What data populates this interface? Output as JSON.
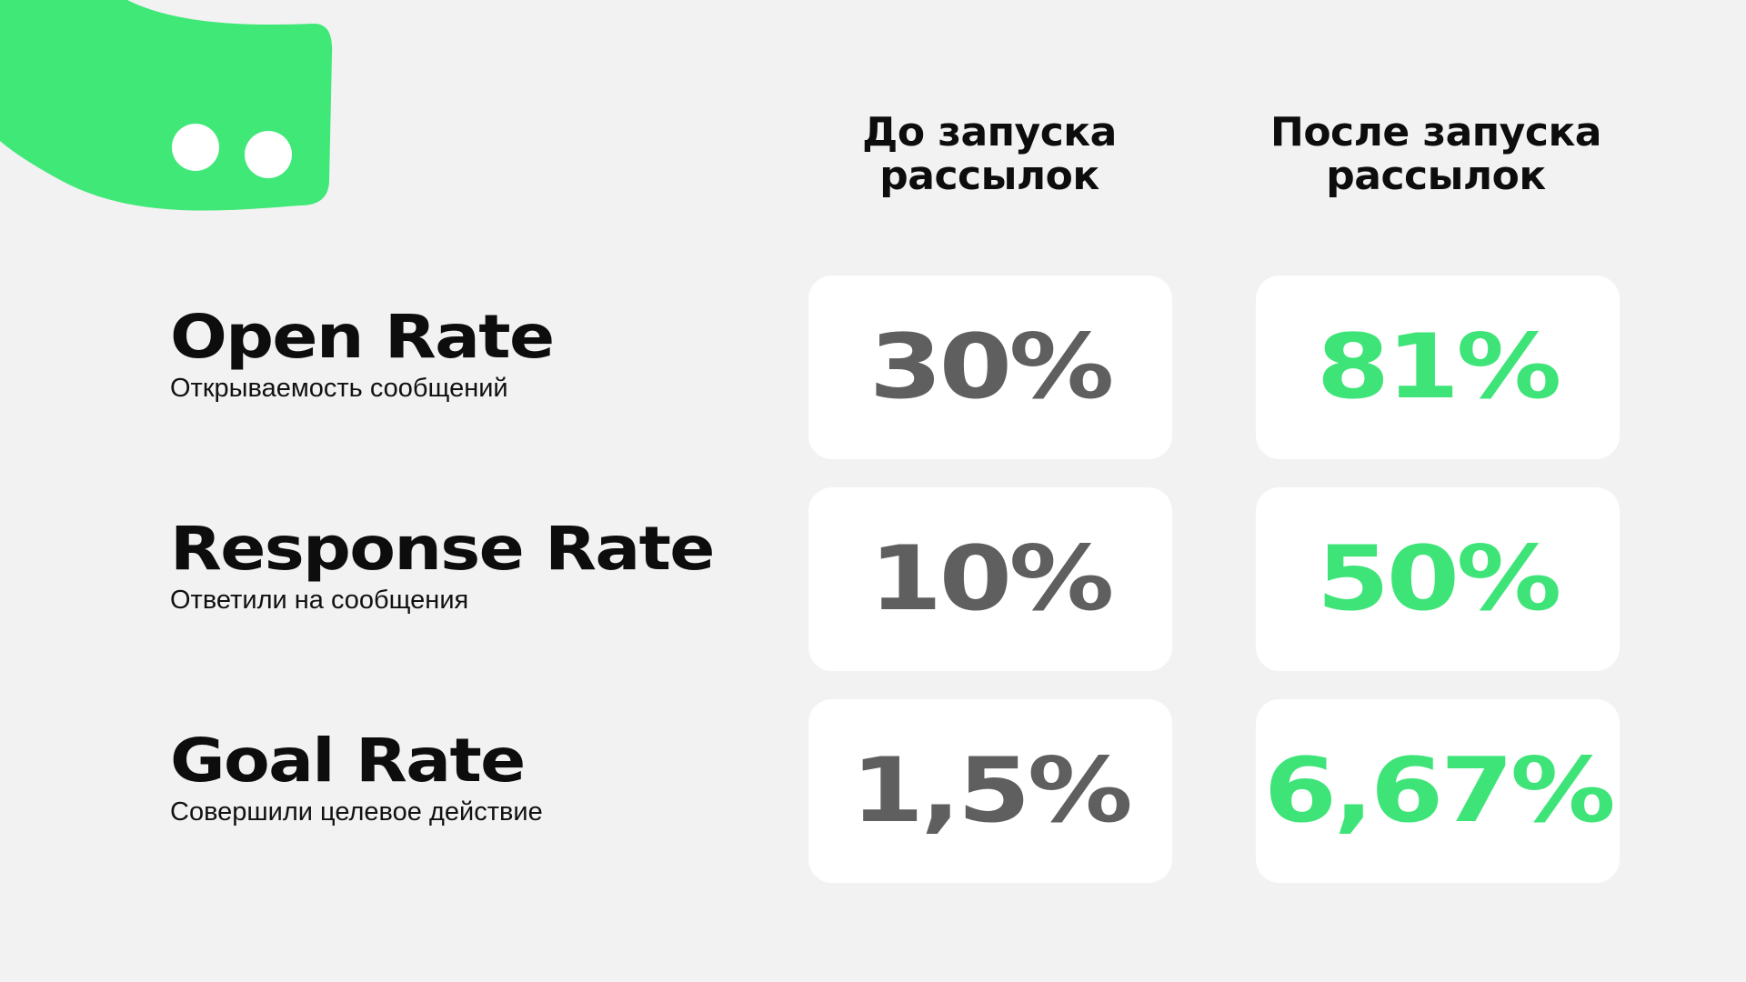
{
  "brand": {
    "accent_color": "#40e878",
    "logo_icon": "speech-bubble-dots-icon"
  },
  "columns": {
    "before": "До запуска\nрассылок",
    "after": "После запуска\nрассылок"
  },
  "metrics": [
    {
      "name": "Open Rate",
      "description": "Открываемость сообщений",
      "before": "30%",
      "after": "81%"
    },
    {
      "name": "Response Rate",
      "description": "Ответили на сообщения",
      "before": "10%",
      "after": "50%"
    },
    {
      "name": "Goal Rate",
      "description": "Совершили целевое действие",
      "before": "1,5%",
      "after": "6,67%"
    }
  ],
  "colors": {
    "background": "#f2f2f2",
    "card": "#ffffff",
    "before_value": "#5f5f5f",
    "after_value": "#3fe479",
    "text": "#0d0d0d"
  }
}
